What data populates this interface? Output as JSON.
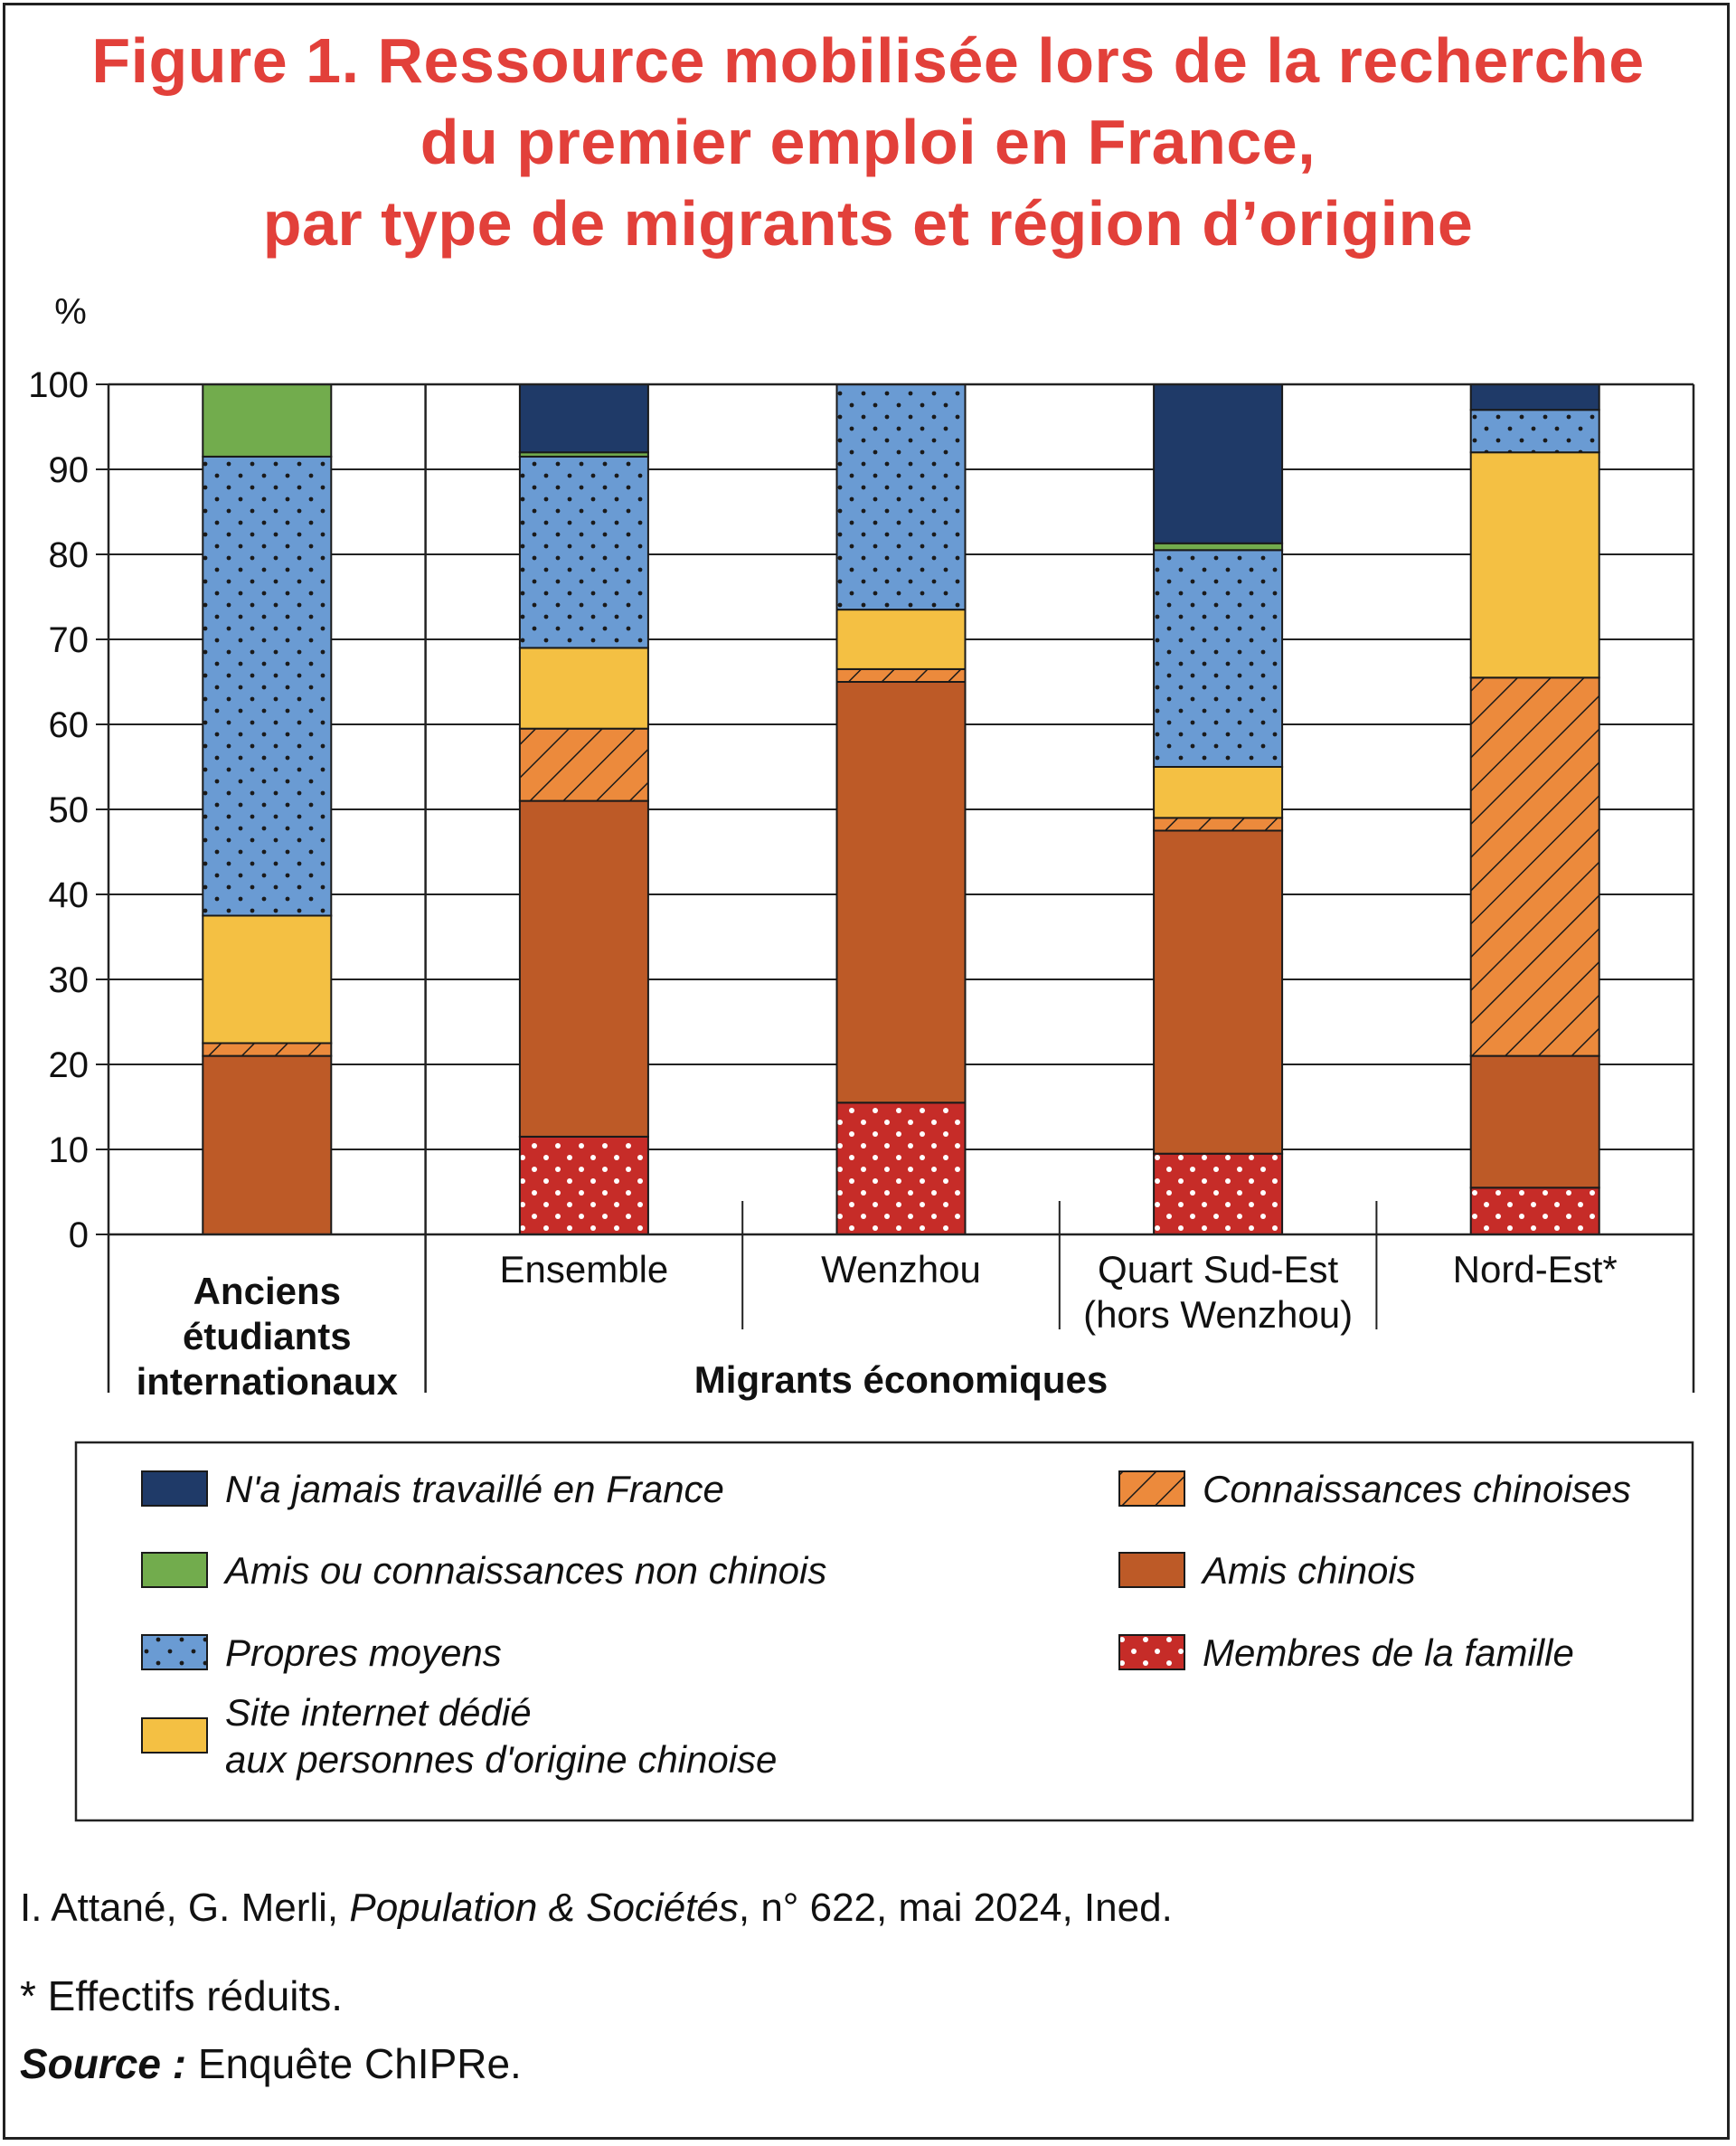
{
  "title": {
    "line1": "Figure 1. Ressource mobilisée lors de la recherche",
    "line2": "du premier emploi en France,",
    "line3": "par type de migrants et région d’origine"
  },
  "colors": {
    "never_worked": "#1f3a68",
    "non_chinese": "#72ac4d",
    "own_means": "#6a9bd3",
    "website": "#f4c043",
    "chinese_acq": "#ec8a3c",
    "chinese_friends": "#bd5a27",
    "family": "#c62c28",
    "dots_dark": "#1a1a1a",
    "dots_light": "#ffffff"
  },
  "chart_data": {
    "type": "bar",
    "stacked": true,
    "ylabel": "%",
    "ylim": [
      0,
      100
    ],
    "yticks": [
      0,
      10,
      20,
      30,
      40,
      50,
      60,
      70,
      80,
      90,
      100
    ],
    "grid": true,
    "categories": [
      [
        "Anciens",
        "étudiants",
        "internationaux"
      ],
      [
        "Ensemble"
      ],
      [
        "Wenzhou"
      ],
      [
        "Quart Sud-Est",
        "(hors Wenzhou)"
      ],
      [
        "Nord-Est*"
      ]
    ],
    "group_label": "Migrants économiques",
    "series": [
      {
        "name": "Membres de la famille",
        "key": "family",
        "pattern": "dots-light",
        "values": [
          0,
          11.5,
          15.5,
          9.5,
          5.5
        ]
      },
      {
        "name": "Amis chinois",
        "key": "chinese_friends",
        "pattern": "solid",
        "values": [
          21,
          39.5,
          49.5,
          38,
          15.5
        ]
      },
      {
        "name": "Connaissances chinoises",
        "key": "chinese_acq",
        "pattern": "hatch",
        "values": [
          1.5,
          8.5,
          1.5,
          1.5,
          44.5
        ]
      },
      {
        "name": "Site internet dédié aux personnes d'origine chinoise",
        "key": "website",
        "pattern": "solid",
        "values": [
          15,
          9.5,
          7,
          6,
          26.5
        ]
      },
      {
        "name": "Propres moyens",
        "key": "own_means",
        "pattern": "dots-dark",
        "values": [
          54,
          22.5,
          26.5,
          25.5,
          5
        ]
      },
      {
        "name": "Amis ou connaissances non chinois",
        "key": "non_chinese",
        "pattern": "solid",
        "values": [
          8.5,
          0.5,
          0,
          0.8,
          0
        ]
      },
      {
        "name": "N'a jamais travaillé en France",
        "key": "never_worked",
        "pattern": "solid",
        "values": [
          0,
          8,
          0,
          18.7,
          3
        ]
      }
    ]
  },
  "legend": {
    "items": [
      {
        "key": "never_worked",
        "pattern": "solid",
        "lines": [
          "N'a jamais travaillé en France"
        ],
        "column": 0
      },
      {
        "key": "non_chinese",
        "pattern": "solid",
        "lines": [
          "Amis ou connaissances non chinois"
        ],
        "column": 0
      },
      {
        "key": "own_means",
        "pattern": "dots-dark",
        "lines": [
          "Propres moyens"
        ],
        "column": 0
      },
      {
        "key": "website",
        "pattern": "solid",
        "lines": [
          "Site internet dédié",
          "aux personnes d'origine chinoise"
        ],
        "column": 0
      },
      {
        "key": "chinese_acq",
        "pattern": "hatch",
        "lines": [
          "Connaissances chinoises"
        ],
        "column": 1
      },
      {
        "key": "chinese_friends",
        "pattern": "solid",
        "lines": [
          "Amis chinois"
        ],
        "column": 1
      },
      {
        "key": "family",
        "pattern": "dots-light",
        "lines": [
          "Membres de la famille"
        ],
        "column": 1
      }
    ]
  },
  "footer": {
    "cite_authors": "I. Attané, G. Merli, ",
    "cite_journal": "Population & Sociétés",
    "cite_rest": ", n° 622, mai 2024, Ined.",
    "note": "* Effectifs réduits.",
    "source_label": "Source :",
    "source_text": " Enquête ChIPRe."
  }
}
